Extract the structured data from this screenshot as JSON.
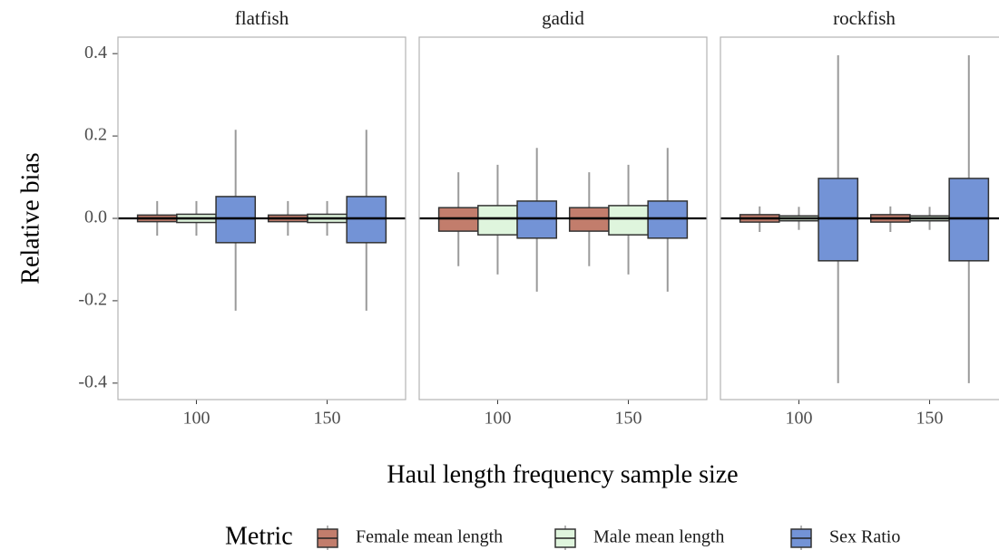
{
  "chart_data": {
    "type": "box",
    "y_label": "Relative bias",
    "x_label": "Haul length frequency sample size",
    "legend_title": "Metric",
    "categories": [
      "100",
      "150"
    ],
    "series": [
      {
        "name": "Female mean length",
        "color": "#c27d6c"
      },
      {
        "name": "Male mean length",
        "color": "#dff5dd"
      },
      {
        "name": "Sex Ratio",
        "color": "#7393d6"
      }
    ],
    "ylim": [
      -0.44,
      0.44
    ],
    "yticks": [
      -0.4,
      -0.2,
      {
        "value": 0,
        "label": "0.0"
      },
      0.2,
      0.4
    ],
    "reference_line": 0,
    "facets": [
      {
        "title": "flatfish",
        "boxes": [
          [
            {
              "low": -0.042,
              "q1": -0.008,
              "median": 0,
              "q3": 0.008,
              "high": 0.042
            },
            {
              "low": -0.042,
              "q1": -0.008,
              "median": 0,
              "q3": 0.008,
              "high": 0.042
            }
          ],
          [
            {
              "low": -0.042,
              "q1": -0.01,
              "median": 0,
              "q3": 0.01,
              "high": 0.042
            },
            {
              "low": -0.042,
              "q1": -0.01,
              "median": 0,
              "q3": 0.01,
              "high": 0.042
            }
          ],
          [
            {
              "low": -0.224,
              "q1": -0.059,
              "median": 0,
              "q3": 0.053,
              "high": 0.215
            },
            {
              "low": -0.224,
              "q1": -0.059,
              "median": 0,
              "q3": 0.053,
              "high": 0.215
            }
          ]
        ]
      },
      {
        "title": "gadid",
        "boxes": [
          [
            {
              "low": -0.116,
              "q1": -0.031,
              "median": 0,
              "q3": 0.026,
              "high": 0.112
            },
            {
              "low": -0.116,
              "q1": -0.031,
              "median": 0,
              "q3": 0.026,
              "high": 0.112
            }
          ],
          [
            {
              "low": -0.136,
              "q1": -0.04,
              "median": 0,
              "q3": 0.031,
              "high": 0.13
            },
            {
              "low": -0.136,
              "q1": -0.04,
              "median": 0,
              "q3": 0.031,
              "high": 0.13
            }
          ],
          [
            {
              "low": -0.178,
              "q1": -0.048,
              "median": 0,
              "q3": 0.042,
              "high": 0.171
            },
            {
              "low": -0.178,
              "q1": -0.048,
              "median": 0,
              "q3": 0.042,
              "high": 0.171
            }
          ]
        ]
      },
      {
        "title": "rockfish",
        "boxes": [
          [
            {
              "low": -0.033,
              "q1": -0.009,
              "median": 0,
              "q3": 0.009,
              "high": 0.029
            },
            {
              "low": -0.033,
              "q1": -0.009,
              "median": 0,
              "q3": 0.009,
              "high": 0.029
            }
          ],
          [
            {
              "low": -0.028,
              "q1": -0.006,
              "median": 0,
              "q3": 0.006,
              "high": 0.028
            },
            {
              "low": -0.028,
              "q1": -0.006,
              "median": 0,
              "q3": 0.006,
              "high": 0.028
            }
          ],
          [
            {
              "low": -0.4,
              "q1": -0.103,
              "median": 0,
              "q3": 0.097,
              "high": 0.396
            },
            {
              "low": -0.4,
              "q1": -0.103,
              "median": 0,
              "q3": 0.097,
              "high": 0.396
            }
          ]
        ]
      }
    ]
  }
}
